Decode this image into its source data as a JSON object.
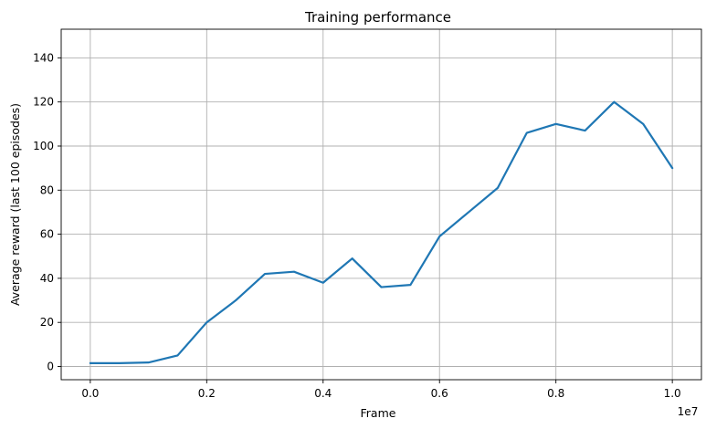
{
  "chart_data": {
    "type": "line",
    "title": "Training performance",
    "xlabel": "Frame",
    "ylabel": "Average reward (last 100 episodes)",
    "x_offset_label": "1e7",
    "xlim": [
      -0.05,
      1.05
    ],
    "ylim": [
      -6,
      153
    ],
    "x_ticks": [
      0.0,
      0.2,
      0.4,
      0.6,
      0.8,
      1.0
    ],
    "x_tick_labels": [
      "0.0",
      "0.2",
      "0.4",
      "0.6",
      "0.8",
      "1.0"
    ],
    "y_ticks": [
      0,
      20,
      40,
      60,
      80,
      100,
      120,
      140
    ],
    "y_tick_labels": [
      "0",
      "20",
      "40",
      "60",
      "80",
      "100",
      "120",
      "140"
    ],
    "grid": true,
    "series": [
      {
        "color": "#1f77b4",
        "x": [
          0.0,
          0.05,
          0.1,
          0.15,
          0.2,
          0.25,
          0.3,
          0.35,
          0.4,
          0.45,
          0.5,
          0.55,
          0.6,
          0.65,
          0.7,
          0.75,
          0.8,
          0.85,
          0.9,
          0.95,
          1.0
        ],
        "y": [
          1.5,
          1.5,
          1.8,
          5.0,
          20.0,
          30.0,
          42.0,
          43.0,
          38.0,
          49.0,
          36.0,
          37.0,
          59.0,
          70.0,
          81.0,
          106.0,
          110.0,
          107.0,
          120.0,
          110.0,
          90.0
        ]
      }
    ]
  }
}
